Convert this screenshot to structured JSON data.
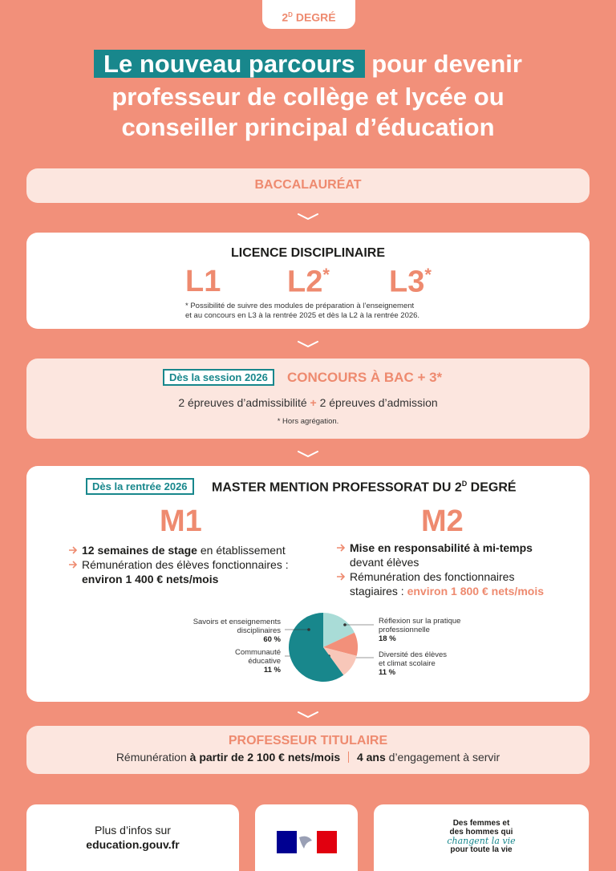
{
  "badge": {
    "number": "2",
    "sup": "D",
    "word": "DEGRÉ"
  },
  "title": {
    "highlight": "Le nouveau parcours",
    "line1_rest": "pour devenir",
    "line2": "professeur de collège et lycée ou",
    "line3": "conseiller principal d’éducation"
  },
  "bac": {
    "title": "BACCALAURÉAT"
  },
  "licence": {
    "title": "LICENCE DISCIPLINAIRE",
    "years": [
      {
        "label": "L1"
      },
      {
        "label": "L2",
        "star": "*"
      },
      {
        "label": "L3",
        "star": "*"
      }
    ],
    "note": [
      "* Possibilité de suivre des modules de préparation à l’enseignement",
      "et au concours en L3 à la rentrée 2025 et dès la L2 à la rentrée 2026."
    ]
  },
  "concours": {
    "tag": "Dès la session 2026",
    "title": "CONCOURS À BAC + 3*",
    "line": {
      "first": "2 épreuves d’admissibilité",
      "plus": "+",
      "second": "2 épreuves d’admission"
    },
    "note": "* Hors agrégation."
  },
  "master": {
    "tag": "Dès la rentrée 2026",
    "title": "MASTER MENTION PROFESSORAT DU 2",
    "title_sup": "D",
    "title_end": "DEGRÉ",
    "m1": {
      "heading": "M1",
      "items": [
        {
          "bold": "12 semaines de stage",
          "rest": "en établissement"
        },
        {
          "text": "Rémunération des élèves fonctionnaires :",
          "bold": "environ 1 400 € nets/mois"
        }
      ]
    },
    "m2": {
      "heading": "M2",
      "items": [
        {
          "bold": "Mise en responsabilité à mi-temps",
          "rest": "devant élèves"
        },
        {
          "text": [
            "Rémunération des fonctionnaires",
            "stagiaires :"
          ],
          "highlight": "environ 1 800 € nets/mois"
        }
      ]
    }
  },
  "pie": {
    "type": "pie",
    "slices": [
      {
        "label": [
          "Réflexion sur la pratique",
          "professionnelle"
        ],
        "value": 18,
        "value_label": "18 %",
        "color": "#a9dcd7"
      },
      {
        "label": [
          "Diversité des élèves",
          "et climat scolaire"
        ],
        "value": 11,
        "value_label": "11 %",
        "color": "#f2907a"
      },
      {
        "label": [
          "Communauté",
          "éducative"
        ],
        "value": 11,
        "value_label": "11 %",
        "color": "#f8c7b9"
      },
      {
        "label": [
          "Savoirs et enseignements",
          "disciplinaires"
        ],
        "value": 60,
        "value_label": "60 %",
        "color": "#18878c"
      }
    ]
  },
  "titulaire": {
    "title": "PROFESSEUR TITULAIRE",
    "line": {
      "text1": "Rémunération",
      "bold1": "à partir de 2 100 € nets/mois",
      "bold2": "4 ans",
      "text2": "d’engagement à servir"
    }
  },
  "footer": {
    "info": {
      "line1": "Plus d’infos sur",
      "link": "education.gouv.fr"
    },
    "slogan": {
      "line1": "Des femmes et",
      "line2": "des hommes qui",
      "script": "changent la vie",
      "line4": "pour toute la vie"
    }
  }
}
